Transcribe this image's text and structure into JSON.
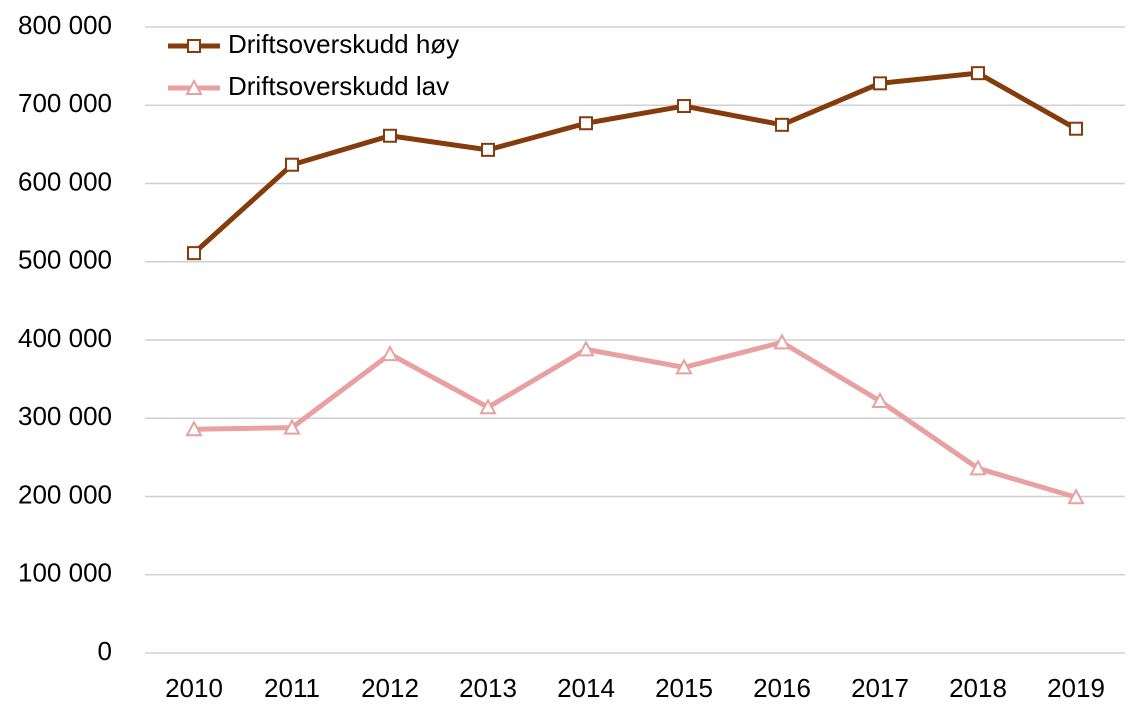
{
  "chart_data": {
    "type": "line",
    "categories": [
      "2010",
      "2011",
      "2012",
      "2013",
      "2014",
      "2015",
      "2016",
      "2017",
      "2018",
      "2019"
    ],
    "series": [
      {
        "name": "Driftsoverskudd høy",
        "color": "#843c0c",
        "marker": "square",
        "values": [
          511000,
          624000,
          661000,
          643000,
          677000,
          699000,
          675000,
          728000,
          741000,
          670000
        ]
      },
      {
        "name": "Driftsoverskudd lav",
        "color": "#e8a0a0",
        "marker": "triangle",
        "values": [
          286000,
          288000,
          382000,
          314000,
          388000,
          365000,
          397000,
          322000,
          236000,
          199000
        ]
      }
    ],
    "ylim": [
      0,
      800000
    ],
    "yticks": [
      0,
      {
        "value": 100000,
        "label": "100 000"
      },
      {
        "value": 200000,
        "label": "200 000"
      },
      {
        "value": 300000,
        "label": "300 000"
      },
      {
        "value": 400000,
        "label": "400 000"
      },
      {
        "value": 500000,
        "label": "500 000"
      },
      {
        "value": 600000,
        "label": "600 000"
      },
      {
        "value": 700000,
        "label": "700 000"
      },
      {
        "value": 800000,
        "label": "800 000"
      }
    ],
    "grid": true,
    "legend": "upper left"
  }
}
